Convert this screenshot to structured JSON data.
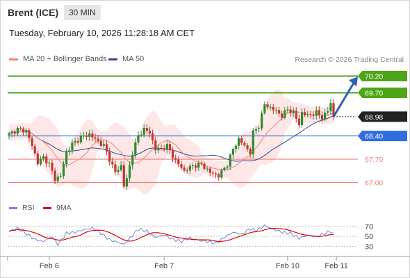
{
  "header": {
    "instrument": "Brent (ICE)",
    "interval": "30 MIN"
  },
  "timestamp": "Tuesday, February 10, 2026 11:28:18 AM CET",
  "legend": [
    {
      "label": "MA 20 + Bollinger Bands",
      "color": "#f2837a"
    },
    {
      "label": "MA 50",
      "color": "#2e4a8c"
    }
  ],
  "copyright": "Research © 2026 Trading Central",
  "rsi_legend": [
    {
      "label": "RSI",
      "color": "#6b8bd6"
    },
    {
      "label": "9MA",
      "color": "#e00000"
    }
  ],
  "colors": {
    "resistance": "#4ca617",
    "pivot": "#2f6de0",
    "support": "#f08080",
    "last": "#222222",
    "up": "#2e8b2e",
    "down": "#c0392b",
    "band": "#fde4e4"
  },
  "chart_data": {
    "type": "candlestick",
    "instrument": "Brent (ICE)",
    "interval": "30 MIN",
    "ylim": [
      66.55,
      70.4
    ],
    "x_ticks": [
      {
        "label": "Feb 6",
        "index": 14
      },
      {
        "label": "Feb 7",
        "index": 54
      },
      {
        "label": "Feb 10",
        "index": 97
      },
      {
        "label": "Feb 11",
        "index": 114
      }
    ],
    "levels": [
      {
        "value": 70.2,
        "label": "70.20",
        "kind": "resistance"
      },
      {
        "value": 69.7,
        "label": "69.70",
        "kind": "resistance"
      },
      {
        "value": 68.98,
        "label": "68.98",
        "kind": "last"
      },
      {
        "value": 68.4,
        "label": "68.40",
        "kind": "pivot"
      },
      {
        "value": 67.7,
        "label": "67.70",
        "kind": "support"
      },
      {
        "value": 67.0,
        "label": "67.00",
        "kind": "support"
      }
    ],
    "anchors": [
      [
        0,
        68.45
      ],
      [
        3,
        68.6
      ],
      [
        6,
        68.55
      ],
      [
        8,
        68.1
      ],
      [
        10,
        67.6
      ],
      [
        12,
        67.75
      ],
      [
        14,
        67.55
      ],
      [
        16,
        67.1
      ],
      [
        18,
        67.2
      ],
      [
        20,
        67.9
      ],
      [
        22,
        68.15
      ],
      [
        25,
        68.35
      ],
      [
        28,
        68.45
      ],
      [
        30,
        68.3
      ],
      [
        33,
        68.1
      ],
      [
        35,
        67.7
      ],
      [
        37,
        67.3
      ],
      [
        39,
        67.5
      ],
      [
        40,
        66.9
      ],
      [
        41,
        67.1
      ],
      [
        43,
        67.9
      ],
      [
        45,
        68.4
      ],
      [
        47,
        68.6
      ],
      [
        49,
        68.5
      ],
      [
        51,
        68.0
      ],
      [
        53,
        68.0
      ],
      [
        55,
        68.1
      ],
      [
        58,
        67.65
      ],
      [
        61,
        67.35
      ],
      [
        64,
        67.5
      ],
      [
        67,
        67.55
      ],
      [
        70,
        67.3
      ],
      [
        73,
        67.2
      ],
      [
        76,
        67.55
      ],
      [
        78,
        68.0
      ],
      [
        80,
        68.3
      ],
      [
        82,
        68.1
      ],
      [
        84,
        67.9
      ],
      [
        85,
        68.5
      ],
      [
        87,
        68.7
      ],
      [
        89,
        69.35
      ],
      [
        91,
        69.25
      ],
      [
        93,
        69.15
      ],
      [
        95,
        69.0
      ],
      [
        97,
        69.2
      ],
      [
        99,
        69.1
      ],
      [
        101,
        68.75
      ],
      [
        102,
        69.1
      ],
      [
        104,
        69.0
      ],
      [
        107,
        69.1
      ],
      [
        109,
        68.95
      ],
      [
        111,
        69.15
      ],
      [
        112,
        69.4
      ],
      [
        113,
        68.98
      ]
    ],
    "projection": {
      "from": [
        113,
        68.98
      ],
      "to": [
        118,
        70.1
      ]
    },
    "rsi": {
      "ylim": [
        20,
        80
      ],
      "levels": [
        70,
        50,
        30
      ],
      "anchors": [
        [
          0,
          60
        ],
        [
          3,
          66
        ],
        [
          6,
          55
        ],
        [
          9,
          44
        ],
        [
          12,
          40
        ],
        [
          15,
          50
        ],
        [
          17,
          34
        ],
        [
          20,
          56
        ],
        [
          23,
          58
        ],
        [
          26,
          63
        ],
        [
          29,
          66
        ],
        [
          32,
          56
        ],
        [
          35,
          43
        ],
        [
          38,
          38
        ],
        [
          40,
          34
        ],
        [
          42,
          46
        ],
        [
          45,
          64
        ],
        [
          48,
          60
        ],
        [
          51,
          48
        ],
        [
          54,
          53
        ],
        [
          57,
          44
        ],
        [
          60,
          40
        ],
        [
          63,
          47
        ],
        [
          66,
          42
        ],
        [
          69,
          40
        ],
        [
          72,
          36
        ],
        [
          75,
          48
        ],
        [
          78,
          58
        ],
        [
          81,
          54
        ],
        [
          84,
          65
        ],
        [
          86,
          61
        ],
        [
          89,
          71
        ],
        [
          92,
          64
        ],
        [
          95,
          58
        ],
        [
          98,
          56
        ],
        [
          101,
          46
        ],
        [
          104,
          52
        ],
        [
          107,
          49
        ],
        [
          110,
          56
        ],
        [
          112,
          60
        ],
        [
          113,
          54
        ]
      ]
    }
  }
}
